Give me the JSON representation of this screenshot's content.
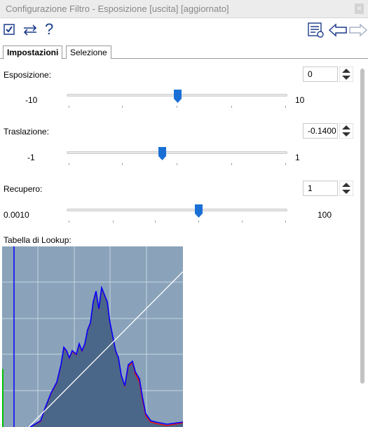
{
  "window": {
    "title": "Configurazione Filtro - Esposizione [uscita] [aggiornato]",
    "close_glyph": "«"
  },
  "toolbar": {
    "left_icons": [
      "checkbox-icon",
      "swap-arrows-icon",
      "help-icon"
    ],
    "help_glyph": "?",
    "right_icons": [
      "settings-list-icon",
      "arrow-left-icon",
      "arrow-right-icon"
    ]
  },
  "tabs": [
    {
      "label": "Impostazioni",
      "active": true
    },
    {
      "label": "Selezione",
      "active": false
    }
  ],
  "params": [
    {
      "label": "Esposizione:",
      "value": "0",
      "min": "-10",
      "max": "10",
      "slider_fraction": 0.5
    },
    {
      "label": "Traslazione:",
      "value": "-0.1400",
      "min": "-1",
      "max": "1",
      "slider_fraction": 0.43
    },
    {
      "label": "Recupero:",
      "value": "1",
      "min": "0.0010",
      "max": "100",
      "slider_fraction": 0.6
    }
  ],
  "lookup": {
    "label": "Tabella di Lookup:"
  },
  "colors": {
    "accent": "#1a6fd6",
    "histogram_bg": "#8aa3ba",
    "histogram_fill": "#4a6688",
    "curve_blue": "#0000ff",
    "curve_red": "#ff0000",
    "curve_green": "#00c000"
  }
}
